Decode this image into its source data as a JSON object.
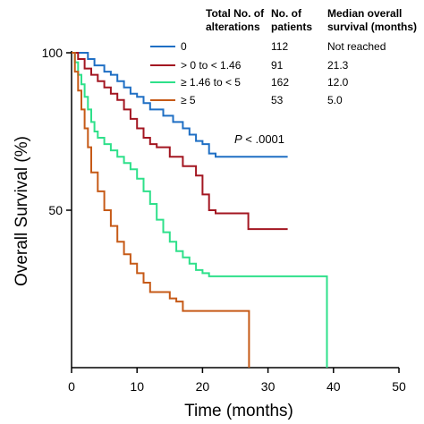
{
  "chart_data": {
    "type": "line",
    "xlabel": "Time (months)",
    "ylabel": "Overall Survival (%)",
    "xlim": [
      0,
      50
    ],
    "ylim": [
      0,
      100
    ],
    "x_ticks": [
      0,
      10,
      20,
      30,
      40,
      50
    ],
    "y_ticks": [
      50,
      100
    ],
    "grid": false,
    "legend_position": "top-right",
    "legend_headers": {
      "group": "Total No. of alterations",
      "patients": "No. of patients",
      "median": "Median overall survival (months)"
    },
    "annotation": {
      "p_value": "P < .0001"
    },
    "series": [
      {
        "name": "0",
        "patients": "112",
        "median": "Not reached",
        "color": "#1f6fc4",
        "steps": [
          [
            0,
            100
          ],
          [
            2.5,
            98
          ],
          [
            3.5,
            96
          ],
          [
            5,
            94
          ],
          [
            6,
            93
          ],
          [
            7,
            91
          ],
          [
            8,
            89
          ],
          [
            9,
            87
          ],
          [
            10,
            86
          ],
          [
            11,
            84
          ],
          [
            12,
            82
          ],
          [
            14,
            80
          ],
          [
            15.5,
            78
          ],
          [
            17,
            76
          ],
          [
            18,
            74
          ],
          [
            19,
            72
          ],
          [
            20,
            71
          ],
          [
            21,
            68
          ],
          [
            22,
            67
          ],
          [
            33,
            67
          ]
        ]
      },
      {
        "name": "> 0 to < 1.46",
        "patients": "91",
        "median": "21.3",
        "color": "#a31621",
        "steps": [
          [
            0,
            100
          ],
          [
            1,
            98
          ],
          [
            2,
            95
          ],
          [
            3,
            93
          ],
          [
            4,
            91
          ],
          [
            5,
            89
          ],
          [
            6,
            87
          ],
          [
            7,
            85
          ],
          [
            8,
            82
          ],
          [
            9,
            79
          ],
          [
            10,
            76
          ],
          [
            11,
            73
          ],
          [
            12,
            71
          ],
          [
            13,
            70
          ],
          [
            15,
            67
          ],
          [
            17,
            64
          ],
          [
            19,
            61
          ],
          [
            20,
            55
          ],
          [
            21,
            50
          ],
          [
            22,
            49
          ],
          [
            27,
            44
          ],
          [
            33,
            44
          ]
        ]
      },
      {
        "name": "≥ 1.46 to < 5",
        "patients": "162",
        "median": "12.0",
        "color": "#2ee08a",
        "steps": [
          [
            0,
            100
          ],
          [
            0.5,
            97
          ],
          [
            1,
            93
          ],
          [
            1.5,
            90
          ],
          [
            2,
            86
          ],
          [
            2.5,
            82
          ],
          [
            3,
            78
          ],
          [
            3.5,
            75
          ],
          [
            4,
            73
          ],
          [
            5,
            71
          ],
          [
            6,
            69
          ],
          [
            7,
            67
          ],
          [
            8,
            65
          ],
          [
            9,
            63
          ],
          [
            10,
            60
          ],
          [
            11,
            56
          ],
          [
            12,
            52
          ],
          [
            13,
            47
          ],
          [
            14,
            43
          ],
          [
            15,
            40
          ],
          [
            16,
            37
          ],
          [
            17,
            35
          ],
          [
            18,
            33
          ],
          [
            19,
            31
          ],
          [
            20,
            30
          ],
          [
            21,
            29
          ],
          [
            28,
            29
          ],
          [
            38,
            29
          ],
          [
            39,
            0
          ]
        ]
      },
      {
        "name": "≥ 5",
        "patients": "53",
        "median": "5.0",
        "color": "#c65a17",
        "steps": [
          [
            0,
            100
          ],
          [
            0.5,
            94
          ],
          [
            1,
            88
          ],
          [
            1.5,
            82
          ],
          [
            2,
            76
          ],
          [
            2.5,
            70
          ],
          [
            3,
            62
          ],
          [
            4,
            56
          ],
          [
            5,
            50
          ],
          [
            6,
            45
          ],
          [
            7,
            40
          ],
          [
            8,
            36
          ],
          [
            9,
            33
          ],
          [
            10,
            30
          ],
          [
            11,
            27
          ],
          [
            12,
            24
          ],
          [
            13,
            24
          ],
          [
            15,
            22
          ],
          [
            16,
            21
          ],
          [
            17,
            18
          ],
          [
            19,
            18
          ],
          [
            27,
            18
          ],
          [
            27.1,
            0
          ]
        ]
      }
    ]
  }
}
